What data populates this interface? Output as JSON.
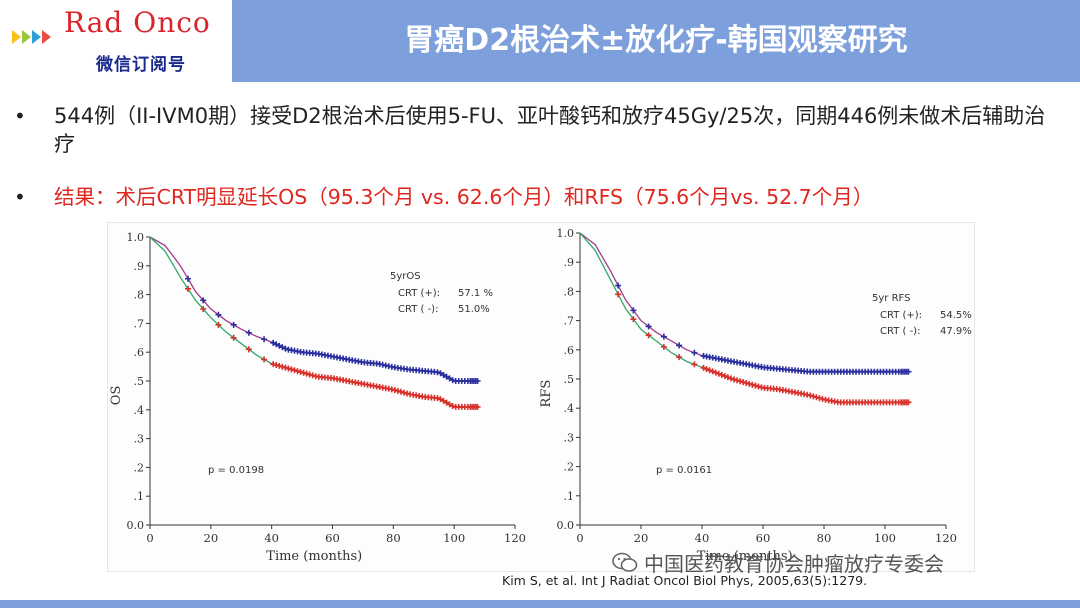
{
  "header": {
    "logo_text": "Rad Onco",
    "logo_subtitle": "微信订阅号",
    "title": "胃癌D2根治术±放化疗-韩国观察研究",
    "colors": {
      "bar": "#7da0dd",
      "logo_red": "#d8242b",
      "logo_blue": "#1a2a8c",
      "chevrons": [
        "#f4c21a",
        "#9cc53d",
        "#2e9fd6",
        "#e74c3c"
      ]
    }
  },
  "bullets": [
    {
      "text": "544例（II-IVM0期）接受D2根治术后使用5-FU、亚叶酸钙和放疗45Gy/25次，同期446例未做术后辅助治疗",
      "color": "#222222"
    },
    {
      "text": "结果：术后CRT明显延长OS（95.3个月 vs. 62.6个月）和RFS（75.6个月vs. 52.7个月）",
      "color": "#e0271f"
    }
  ],
  "citation": "Kim S, et al. Int J Radiat Oncol Biol Phys, 2005,63(5):1279.",
  "watermark": "中国医药教育协会肿瘤放疗专委会",
  "chart_data": [
    {
      "type": "line",
      "ylabel": "OS",
      "xlabel": "Time (months)",
      "xlim": [
        0,
        120
      ],
      "ylim": [
        0.0,
        1.0
      ],
      "xticks": [
        "0",
        "20",
        "40",
        "60",
        "80",
        "100",
        "120"
      ],
      "yticks": [
        "0.0",
        ".1",
        ".2",
        ".3",
        ".4",
        ".5",
        ".6",
        ".7",
        ".8",
        ".9",
        "1.0"
      ],
      "legend_title": "5yrOS",
      "legend": [
        {
          "label": "CRT (+):",
          "value": "57.1 %"
        },
        {
          "label": "CRT ( -):",
          "value": "51.0%"
        }
      ],
      "pvalue": "p = 0.0198",
      "series": [
        {
          "color": "#2b2f9e",
          "curve_color": "#a03a8c",
          "x": [
            0,
            5,
            10,
            15,
            20,
            25,
            30,
            35,
            40,
            45,
            50,
            55,
            60,
            65,
            70,
            75,
            80,
            85,
            90,
            95,
            100,
            105,
            108
          ],
          "y": [
            1.0,
            0.97,
            0.9,
            0.81,
            0.75,
            0.71,
            0.68,
            0.655,
            0.635,
            0.61,
            0.6,
            0.595,
            0.585,
            0.575,
            0.565,
            0.56,
            0.548,
            0.54,
            0.535,
            0.53,
            0.5,
            0.5,
            0.5
          ]
        },
        {
          "color": "#d8302a",
          "curve_color": "#2fa96a",
          "x": [
            0,
            5,
            10,
            15,
            20,
            25,
            30,
            35,
            40,
            45,
            50,
            55,
            60,
            65,
            70,
            75,
            80,
            85,
            90,
            95,
            100,
            105,
            108
          ],
          "y": [
            1.0,
            0.95,
            0.86,
            0.78,
            0.72,
            0.67,
            0.63,
            0.59,
            0.56,
            0.545,
            0.53,
            0.515,
            0.51,
            0.5,
            0.49,
            0.48,
            0.47,
            0.455,
            0.445,
            0.44,
            0.41,
            0.41,
            0.41
          ]
        }
      ]
    },
    {
      "type": "line",
      "ylabel": "RFS",
      "xlabel": "Time (months)",
      "xlim": [
        0,
        120
      ],
      "ylim": [
        0.0,
        1.0
      ],
      "xticks": [
        "0",
        "20",
        "40",
        "60",
        "80",
        "100",
        "120"
      ],
      "yticks": [
        "0.0",
        ".1",
        ".2",
        ".3",
        ".4",
        ".5",
        ".6",
        ".7",
        ".8",
        ".9",
        "1.0"
      ],
      "legend_title": "5yr RFS",
      "legend": [
        {
          "label": "CRT (+):",
          "value": "54.5%"
        },
        {
          "label": "CRT ( -):",
          "value": "47.9%"
        }
      ],
      "pvalue": "p = 0.0161",
      "series": [
        {
          "color": "#2b2f9e",
          "curve_color": "#a03a8c",
          "x": [
            0,
            5,
            10,
            15,
            20,
            25,
            30,
            35,
            40,
            45,
            50,
            55,
            60,
            65,
            70,
            75,
            80,
            85,
            90,
            95,
            100,
            105,
            108
          ],
          "y": [
            1.0,
            0.96,
            0.87,
            0.77,
            0.7,
            0.66,
            0.63,
            0.6,
            0.58,
            0.57,
            0.56,
            0.55,
            0.54,
            0.535,
            0.53,
            0.525,
            0.525,
            0.525,
            0.525,
            0.525,
            0.525,
            0.525,
            0.525
          ]
        },
        {
          "color": "#d8302a",
          "curve_color": "#2fa96a",
          "x": [
            0,
            5,
            10,
            15,
            20,
            25,
            30,
            35,
            40,
            45,
            50,
            55,
            60,
            65,
            70,
            75,
            80,
            85,
            90,
            95,
            100,
            105,
            108
          ],
          "y": [
            1.0,
            0.94,
            0.84,
            0.74,
            0.67,
            0.63,
            0.59,
            0.56,
            0.54,
            0.52,
            0.5,
            0.485,
            0.47,
            0.465,
            0.455,
            0.445,
            0.43,
            0.42,
            0.42,
            0.42,
            0.42,
            0.42,
            0.42
          ]
        }
      ]
    }
  ]
}
